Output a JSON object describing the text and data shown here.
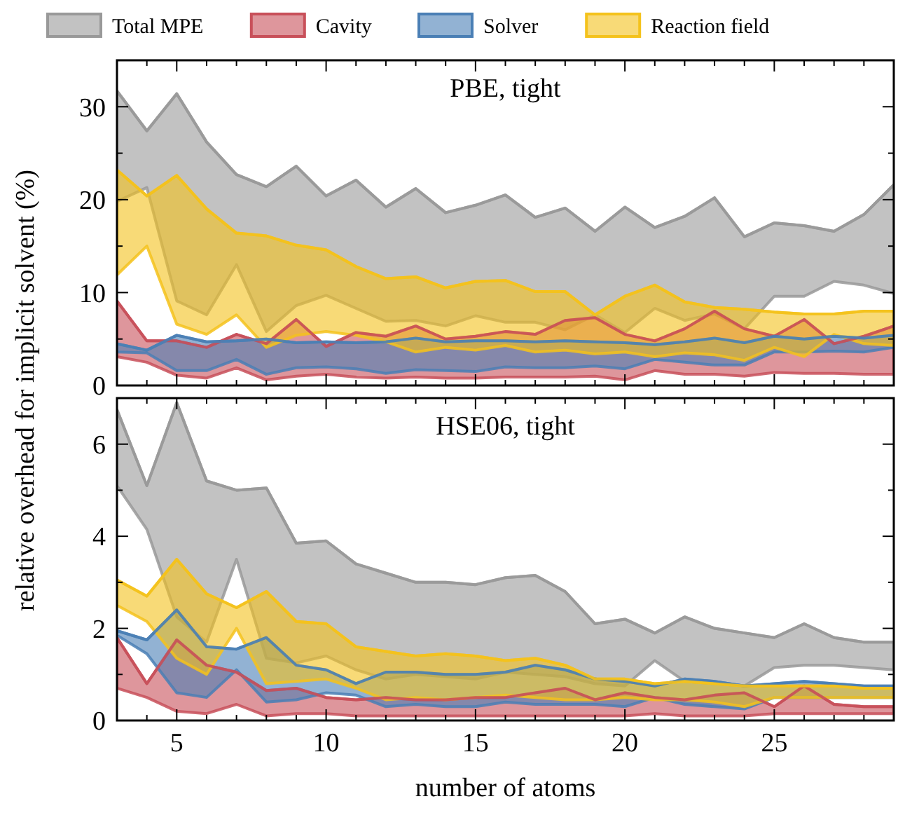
{
  "chart_data": [
    {
      "type": "line",
      "title": "PBE, tight",
      "ylabel": "relative overhead for implicit solvent (%)",
      "legend": "top",
      "tick_labels": "y",
      "x": [
        3,
        4,
        5,
        6,
        7,
        8,
        9,
        10,
        11,
        12,
        13,
        14,
        15,
        16,
        17,
        18,
        19,
        20,
        21,
        22,
        23,
        24,
        25,
        26,
        27,
        28,
        29
      ],
      "xlim": [
        3,
        29
      ],
      "xticks": [
        {
          "value": 3,
          "label": null
        },
        {
          "value": 4,
          "label": null
        },
        5,
        {
          "value": 6,
          "label": null
        },
        {
          "value": 7,
          "label": null
        },
        {
          "value": 8,
          "label": null
        },
        {
          "value": 9,
          "label": null
        },
        10,
        {
          "value": 11,
          "label": null
        },
        {
          "value": 12,
          "label": null
        },
        {
          "value": 13,
          "label": null
        },
        {
          "value": 14,
          "label": null
        },
        15,
        {
          "value": 16,
          "label": null
        },
        {
          "value": 17,
          "label": null
        },
        {
          "value": 18,
          "label": null
        },
        {
          "value": 19,
          "label": null
        },
        20,
        {
          "value": 21,
          "label": null
        },
        {
          "value": 22,
          "label": null
        },
        {
          "value": 23,
          "label": null
        },
        {
          "value": 24,
          "label": null
        },
        25,
        {
          "value": 26,
          "label": null
        },
        {
          "value": 27,
          "label": null
        },
        {
          "value": 28,
          "label": null
        },
        {
          "value": 29,
          "label": null
        }
      ],
      "ylim": [
        0,
        35
      ],
      "yticks": [
        0,
        {
          "value": 5,
          "label": null
        },
        10,
        {
          "value": 15,
          "label": null
        },
        20,
        {
          "value": 25,
          "label": null
        },
        30,
        {
          "value": 35,
          "label": null
        }
      ],
      "series": [
        {
          "name": "Total MPE",
          "color": "#999999",
          "lower": [
            19.8,
            21.3,
            9.1,
            7.6,
            13.0,
            5.8,
            8.6,
            9.7,
            8.3,
            6.9,
            7.0,
            6.4,
            7.5,
            6.8,
            6.8,
            6.0,
            7.6,
            5.7,
            8.3,
            7.0,
            7.7,
            6.1,
            9.6,
            9.6,
            11.2,
            10.8,
            9.9
          ],
          "values": [
            31.7,
            27.4,
            31.4,
            26.2,
            22.7,
            21.4,
            23.6,
            20.4,
            22.1,
            19.2,
            21.2,
            18.6,
            19.4,
            20.5,
            18.1,
            19.1,
            16.6,
            19.2,
            17.0,
            18.2,
            20.2,
            16.0,
            17.5,
            17.2,
            16.6,
            18.4,
            21.6
          ],
          "upper": [
            31.7,
            27.4,
            31.4,
            26.2,
            22.7,
            21.4,
            23.6,
            20.4,
            22.1,
            19.2,
            21.2,
            18.6,
            19.4,
            20.5,
            18.1,
            19.1,
            16.6,
            19.2,
            17.0,
            18.2,
            20.2,
            16.0,
            17.5,
            17.2,
            16.6,
            18.4,
            21.6
          ]
        },
        {
          "name": "Cavity",
          "color": "#c8505a",
          "lower": [
            3.1,
            2.5,
            1.1,
            0.8,
            1.9,
            0.6,
            1.0,
            1.2,
            0.9,
            0.8,
            0.9,
            0.8,
            0.8,
            0.9,
            0.9,
            0.9,
            1.0,
            0.6,
            1.6,
            1.2,
            1.2,
            1.0,
            1.4,
            1.3,
            1.3,
            1.2,
            1.2
          ],
          "values": [
            9.1,
            4.8,
            4.8,
            4.1,
            5.5,
            4.5,
            7.1,
            4.2,
            5.7,
            5.3,
            6.4,
            5.0,
            5.3,
            5.8,
            5.5,
            7.0,
            7.3,
            5.5,
            4.8,
            6.1,
            8.0,
            6.1,
            5.3,
            7.1,
            4.5,
            5.3,
            6.4
          ],
          "upper": [
            9.1,
            4.8,
            4.8,
            4.1,
            5.5,
            4.5,
            7.1,
            4.2,
            5.7,
            5.3,
            6.4,
            5.0,
            5.3,
            5.8,
            5.5,
            7.0,
            7.3,
            5.5,
            4.8,
            6.1,
            8.0,
            6.1,
            5.3,
            7.1,
            4.5,
            5.3,
            6.4
          ]
        },
        {
          "name": "Solver",
          "color": "#4a7fb5",
          "lower": [
            3.6,
            3.5,
            1.6,
            1.6,
            2.8,
            1.2,
            1.9,
            2.0,
            1.8,
            1.3,
            1.7,
            1.6,
            1.5,
            2.0,
            1.9,
            1.9,
            2.1,
            1.8,
            2.8,
            2.5,
            2.2,
            2.2,
            3.6,
            3.6,
            3.7,
            3.6,
            4.1
          ],
          "values": [
            4.5,
            3.8,
            5.4,
            4.7,
            4.8,
            5.0,
            4.6,
            4.7,
            4.6,
            4.7,
            5.1,
            4.7,
            4.8,
            4.8,
            4.7,
            4.8,
            4.7,
            4.6,
            4.4,
            4.7,
            5.1,
            4.6,
            5.3,
            5.0,
            5.3,
            5.1,
            5.4
          ],
          "upper": [
            4.5,
            3.8,
            5.4,
            4.7,
            4.8,
            5.0,
            4.6,
            4.7,
            4.6,
            4.7,
            5.1,
            4.7,
            4.8,
            4.8,
            4.7,
            4.8,
            4.7,
            4.6,
            4.4,
            4.7,
            5.1,
            4.6,
            5.3,
            5.0,
            5.3,
            5.1,
            5.4
          ]
        },
        {
          "name": "Reaction field",
          "color": "#f4c21c",
          "lower": [
            11.9,
            15.0,
            6.6,
            5.5,
            7.6,
            4.1,
            5.4,
            5.8,
            5.4,
            4.7,
            3.6,
            4.1,
            3.8,
            4.3,
            3.6,
            3.8,
            3.4,
            3.6,
            3.1,
            3.5,
            3.3,
            2.7,
            4.1,
            3.1,
            5.5,
            4.5,
            4.3
          ],
          "values": [
            23.2,
            20.4,
            22.6,
            19.0,
            16.4,
            16.1,
            15.1,
            14.6,
            12.8,
            11.5,
            11.7,
            10.5,
            11.2,
            11.3,
            10.1,
            10.1,
            7.6,
            9.6,
            10.8,
            9.0,
            8.4,
            8.2,
            7.9,
            7.7,
            7.7,
            8.0,
            8.0
          ],
          "upper": [
            23.2,
            20.4,
            22.6,
            19.0,
            16.4,
            16.1,
            15.1,
            14.6,
            12.8,
            11.5,
            11.7,
            10.5,
            11.2,
            11.3,
            10.1,
            10.1,
            7.6,
            9.6,
            10.8,
            9.0,
            8.4,
            8.2,
            7.9,
            7.7,
            7.7,
            8.0,
            8.0
          ]
        }
      ]
    },
    {
      "type": "line",
      "title": "HSE06, tight",
      "xlabel": "number of atoms",
      "x": [
        3,
        4,
        5,
        6,
        7,
        8,
        9,
        10,
        11,
        12,
        13,
        14,
        15,
        16,
        17,
        18,
        19,
        20,
        21,
        22,
        23,
        24,
        25,
        26,
        27,
        28,
        29
      ],
      "xlim": [
        3,
        29
      ],
      "xticks": [
        {
          "value": 3,
          "label": null
        },
        {
          "value": 4,
          "label": null
        },
        5,
        {
          "value": 6,
          "label": null
        },
        {
          "value": 7,
          "label": null
        },
        {
          "value": 8,
          "label": null
        },
        {
          "value": 9,
          "label": null
        },
        10,
        {
          "value": 11,
          "label": null
        },
        {
          "value": 12,
          "label": null
        },
        {
          "value": 13,
          "label": null
        },
        {
          "value": 14,
          "label": null
        },
        15,
        {
          "value": 16,
          "label": null
        },
        {
          "value": 17,
          "label": null
        },
        {
          "value": 18,
          "label": null
        },
        {
          "value": 19,
          "label": null
        },
        20,
        {
          "value": 21,
          "label": null
        },
        {
          "value": 22,
          "label": null
        },
        {
          "value": 23,
          "label": null
        },
        {
          "value": 24,
          "label": null
        },
        25,
        {
          "value": 26,
          "label": null
        },
        {
          "value": 27,
          "label": null
        },
        {
          "value": 28,
          "label": null
        },
        {
          "value": 29,
          "label": null
        }
      ],
      "ylim": [
        0,
        7
      ],
      "yticks": [
        0,
        {
          "value": 1,
          "label": null
        },
        2,
        {
          "value": 3,
          "label": null
        },
        4,
        {
          "value": 5,
          "label": null
        },
        6,
        {
          "value": 7,
          "label": null
        }
      ],
      "series": [
        {
          "color": "#999999",
          "lower": [
            5.1,
            4.15,
            2.25,
            1.7,
            3.5,
            1.35,
            1.25,
            1.4,
            1.1,
            0.9,
            1.0,
            0.95,
            0.9,
            1.05,
            1.0,
            0.95,
            0.8,
            0.75,
            1.3,
            0.85,
            0.8,
            0.75,
            1.15,
            1.2,
            1.2,
            1.15,
            1.1
          ],
          "values": [
            6.75,
            5.1,
            6.9,
            5.2,
            5.0,
            5.05,
            3.85,
            3.9,
            3.4,
            3.2,
            3.0,
            3.0,
            2.95,
            3.1,
            3.15,
            2.8,
            2.1,
            2.2,
            1.9,
            2.25,
            2.0,
            1.9,
            1.8,
            2.1,
            1.8,
            1.7,
            1.7
          ],
          "upper": [
            6.75,
            5.1,
            6.9,
            5.2,
            5.0,
            5.05,
            3.85,
            3.9,
            3.4,
            3.2,
            3.0,
            3.0,
            2.95,
            3.1,
            3.15,
            2.8,
            2.1,
            2.2,
            1.9,
            2.25,
            2.0,
            1.9,
            1.8,
            2.1,
            1.8,
            1.7,
            1.7
          ]
        },
        {
          "color": "#c8505a",
          "lower": [
            0.7,
            0.5,
            0.2,
            0.15,
            0.35,
            0.1,
            0.15,
            0.15,
            0.1,
            0.1,
            0.1,
            0.1,
            0.1,
            0.1,
            0.1,
            0.1,
            0.1,
            0.1,
            0.15,
            0.1,
            0.1,
            0.1,
            0.15,
            0.15,
            0.15,
            0.15,
            0.15
          ],
          "values": [
            1.8,
            0.8,
            1.75,
            1.2,
            1.05,
            0.65,
            0.7,
            0.5,
            0.45,
            0.5,
            0.45,
            0.45,
            0.5,
            0.5,
            0.6,
            0.7,
            0.45,
            0.6,
            0.5,
            0.45,
            0.55,
            0.6,
            0.3,
            0.75,
            0.35,
            0.3,
            0.3
          ],
          "upper": [
            1.8,
            0.8,
            1.75,
            1.2,
            1.05,
            0.65,
            0.7,
            0.5,
            0.45,
            0.5,
            0.45,
            0.45,
            0.5,
            0.5,
            0.6,
            0.7,
            0.45,
            0.6,
            0.5,
            0.45,
            0.55,
            0.6,
            0.3,
            0.75,
            0.35,
            0.3,
            0.3
          ]
        },
        {
          "color": "#4a7fb5",
          "lower": [
            1.85,
            1.45,
            0.6,
            0.5,
            1.1,
            0.4,
            0.45,
            0.6,
            0.55,
            0.3,
            0.35,
            0.3,
            0.3,
            0.4,
            0.35,
            0.35,
            0.35,
            0.3,
            0.5,
            0.35,
            0.3,
            0.25,
            0.5,
            0.5,
            0.5,
            0.5,
            0.5
          ],
          "values": [
            1.95,
            1.75,
            2.4,
            1.6,
            1.55,
            1.8,
            1.2,
            1.1,
            0.8,
            1.05,
            1.05,
            1.0,
            1.0,
            1.05,
            1.2,
            1.1,
            0.9,
            0.85,
            0.75,
            0.9,
            0.85,
            0.75,
            0.8,
            0.85,
            0.8,
            0.75,
            0.75
          ],
          "upper": [
            1.95,
            1.75,
            2.4,
            1.6,
            1.55,
            1.8,
            1.2,
            1.1,
            0.8,
            1.05,
            1.05,
            1.0,
            1.0,
            1.05,
            1.2,
            1.1,
            0.9,
            0.85,
            0.75,
            0.9,
            0.85,
            0.75,
            0.8,
            0.85,
            0.8,
            0.75,
            0.75
          ]
        },
        {
          "color": "#f4c21c",
          "lower": [
            2.5,
            2.15,
            1.35,
            1.0,
            2.0,
            0.8,
            0.85,
            0.9,
            0.7,
            0.45,
            0.5,
            0.45,
            0.5,
            0.55,
            0.5,
            0.45,
            0.45,
            0.5,
            0.45,
            0.45,
            0.4,
            0.3,
            0.5,
            0.5,
            0.5,
            0.5,
            0.5
          ],
          "values": [
            3.05,
            2.7,
            3.5,
            2.75,
            2.45,
            2.8,
            2.15,
            2.1,
            1.6,
            1.5,
            1.4,
            1.45,
            1.4,
            1.3,
            1.35,
            1.2,
            0.9,
            0.9,
            0.8,
            0.85,
            0.8,
            0.75,
            0.75,
            0.75,
            0.75,
            0.7,
            0.7
          ],
          "upper": [
            3.05,
            2.7,
            3.5,
            2.75,
            2.45,
            2.8,
            2.15,
            2.1,
            1.6,
            1.5,
            1.4,
            1.45,
            1.4,
            1.3,
            1.35,
            1.2,
            0.9,
            0.9,
            0.8,
            0.85,
            0.8,
            0.75,
            0.75,
            0.75,
            0.75,
            0.7,
            0.7
          ]
        }
      ]
    }
  ]
}
